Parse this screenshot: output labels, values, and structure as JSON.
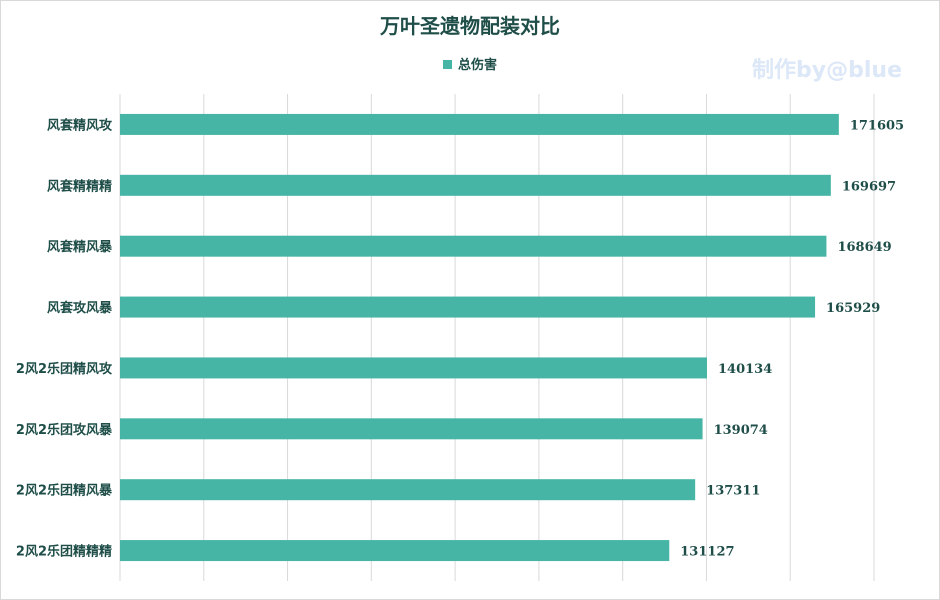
{
  "chart": {
    "title": "万叶圣遗物配装对比",
    "watermark": "制作by@blue"
  },
  "colors": {
    "bar": "#47b5a6",
    "text": "#1f4e49",
    "grid": "#d9d9d9"
  },
  "chart_data": {
    "type": "bar",
    "orientation": "horizontal",
    "title": "万叶圣遗物配装对比",
    "xlabel": "",
    "ylabel": "",
    "categories": [
      "风套精风攻",
      "风套精精精",
      "风套精风暴",
      "风套攻风暴",
      "2风2乐团精风攻",
      "2风2乐团攻风暴",
      "2风2乐团精风暴",
      "2风2乐团精精精"
    ],
    "series": [
      {
        "name": "总伤害",
        "values": [
          171605,
          169697,
          168649,
          165929,
          140134,
          139074,
          137311,
          131127
        ]
      }
    ],
    "xlim": [
      0,
      180000
    ],
    "grid": true,
    "legend": "top-center",
    "data_labels": true
  }
}
